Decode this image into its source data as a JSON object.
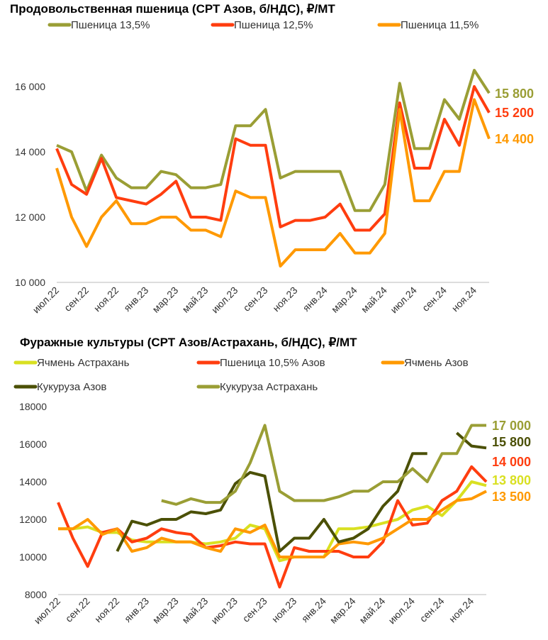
{
  "chart_data": [
    {
      "type": "line",
      "title": "Продовольственная пшеница (СРТ Азов, б/НДС), ₽/МТ",
      "x_ticks": [
        "июл.22",
        "сен.22",
        "ноя.22",
        "янв.23",
        "мар.23",
        "май.23",
        "июл.23",
        "сен.23",
        "ноя.23",
        "янв.24",
        "мар.24",
        "май.24",
        "июл.24",
        "сен.24",
        "ноя.24"
      ],
      "y_ticks": [
        "10 000",
        "12 000",
        "14 000",
        "16 000"
      ],
      "ylim": [
        10000,
        17000
      ],
      "legend": "top",
      "x_months": "июл.22..ноя.24 (monthly)",
      "series": [
        {
          "name": "Пшеница 13,5%",
          "color": "#9a9e35",
          "end_label": "15 800",
          "values": [
            14200,
            14000,
            12800,
            13900,
            13200,
            12900,
            12900,
            13400,
            13300,
            12900,
            12900,
            13000,
            14800,
            14800,
            15300,
            13200,
            13400,
            13400,
            13400,
            13400,
            12200,
            12200,
            13000,
            16100,
            14100,
            14100,
            15600,
            15000,
            16500,
            15800
          ]
        },
        {
          "name": "Пшеница 12,5%",
          "color": "#ff3d0f",
          "end_label": "15 200",
          "values": [
            14100,
            13000,
            12700,
            13800,
            12600,
            12500,
            12400,
            12700,
            13100,
            12000,
            12000,
            11900,
            14400,
            14200,
            14200,
            11700,
            11900,
            11900,
            12000,
            12400,
            11600,
            11600,
            12100,
            15500,
            13500,
            13500,
            15000,
            14200,
            16000,
            15200
          ]
        },
        {
          "name": "Пшеница 11,5%",
          "color": "#ff9900",
          "end_label": "14 400",
          "values": [
            13500,
            12000,
            11100,
            12000,
            12500,
            11800,
            11800,
            12000,
            12000,
            11600,
            11600,
            11400,
            12800,
            12600,
            12600,
            10500,
            11000,
            11000,
            11000,
            11500,
            10900,
            10900,
            11500,
            15300,
            12500,
            12500,
            13400,
            13400,
            15600,
            14400
          ]
        }
      ]
    },
    {
      "type": "line",
      "title": "Фуражные культуры (СРТ Азов/Астрахань, б/НДС), ₽/МТ",
      "x_ticks": [
        "июл.22",
        "сен.22",
        "ноя.22",
        "янв.23",
        "мар.23",
        "май.23",
        "июл.23",
        "сен.23",
        "ноя.23",
        "янв.24",
        "мар.24",
        "май.24",
        "июл.24",
        "сен.24",
        "ноя.24"
      ],
      "y_ticks": [
        "8000",
        "10000",
        "12000",
        "14000",
        "16000",
        "18000"
      ],
      "ylim": [
        8000,
        18000
      ],
      "legend": "top",
      "series": [
        {
          "name": "Ячмень Астрахань",
          "color": "#d9e021",
          "end_label": "13 800",
          "values": [
            11500,
            11500,
            11600,
            11300,
            11300,
            10900,
            10800,
            10800,
            10800,
            10800,
            10700,
            10800,
            11000,
            11700,
            11500,
            9800,
            10000,
            10000,
            10000,
            11500,
            11500,
            11600,
            11800,
            12000,
            12500,
            12700,
            12200,
            13000,
            14000,
            13800
          ]
        },
        {
          "name": "Пшеница 10,5% Азов",
          "color": "#ff3d0f",
          "end_label": "14 000",
          "values": [
            12900,
            11000,
            9500,
            11300,
            11500,
            10800,
            11000,
            11500,
            11300,
            11200,
            10500,
            10600,
            10800,
            10700,
            10700,
            8400,
            10500,
            10300,
            10300,
            10300,
            10000,
            10000,
            10800,
            13000,
            11700,
            11800,
            13000,
            13500,
            14800,
            14000
          ]
        },
        {
          "name": "Ячмень Азов",
          "color": "#ff9900",
          "end_label": "13 500",
          "values": [
            11500,
            11500,
            12000,
            11200,
            11500,
            10300,
            10500,
            11000,
            10800,
            10800,
            10500,
            10300,
            11500,
            11300,
            11700,
            10000,
            10000,
            10000,
            10000,
            10700,
            10800,
            10700,
            11000,
            11500,
            12000,
            12000,
            12500,
            13000,
            13100,
            13500
          ]
        },
        {
          "name": "Кукуруза Азов",
          "color": "#4b5006",
          "end_label": "15 800",
          "values": [
            null,
            null,
            null,
            null,
            10300,
            11900,
            11700,
            12000,
            12000,
            12400,
            12300,
            12500,
            13900,
            14500,
            14300,
            10300,
            11000,
            11000,
            12000,
            10800,
            11000,
            11500,
            12700,
            13500,
            15500,
            15500,
            null,
            16600,
            15900,
            15800
          ]
        },
        {
          "name": "Кукуруза Астрахань",
          "color": "#9a9e35",
          "end_label": "17 000",
          "values": [
            null,
            null,
            null,
            null,
            null,
            null,
            null,
            13000,
            12800,
            13100,
            12900,
            12900,
            13500,
            15000,
            17000,
            13500,
            13000,
            13000,
            13000,
            13200,
            13500,
            13500,
            14000,
            14000,
            14700,
            14000,
            15500,
            15500,
            17000,
            17000
          ]
        }
      ]
    }
  ]
}
